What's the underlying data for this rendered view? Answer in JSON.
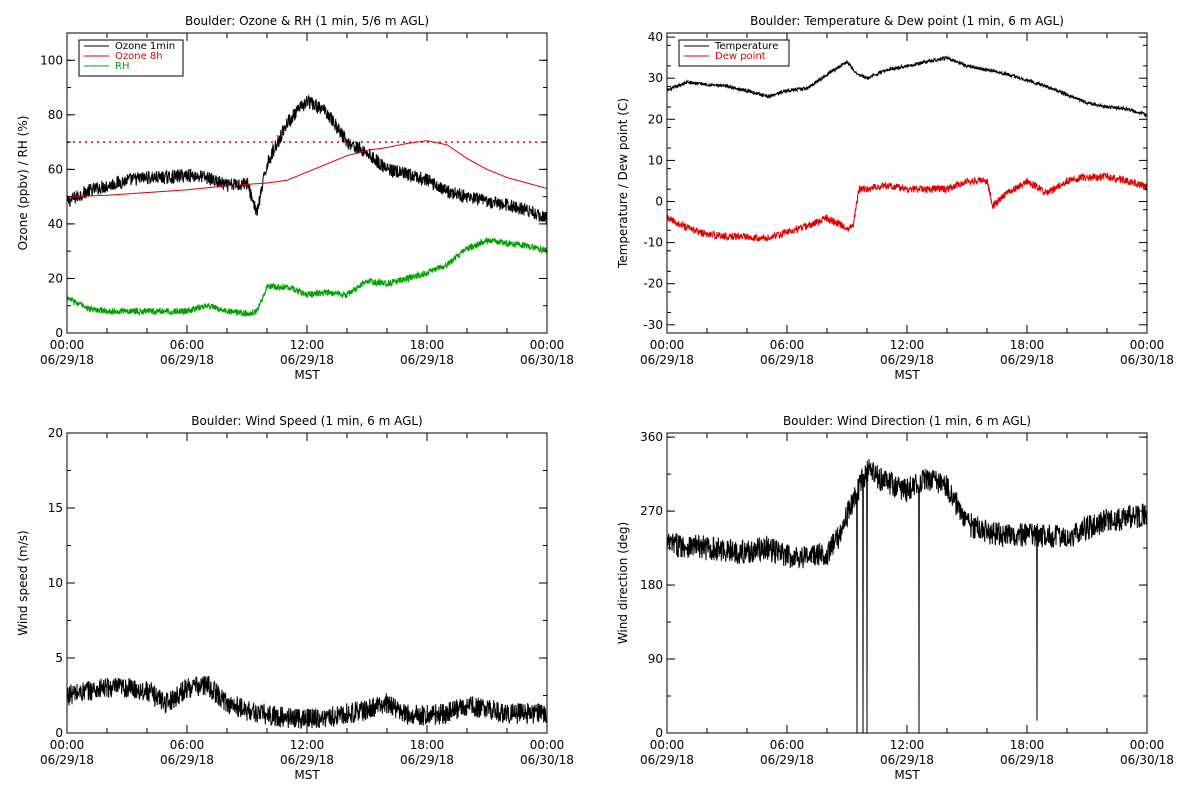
{
  "colors": {
    "black": "#000000",
    "red": "#e00000",
    "green": "#00a000"
  },
  "time_ticks": [
    [
      "00:00",
      "06/29/18"
    ],
    [
      "06:00",
      "06/29/18"
    ],
    [
      "12:00",
      "06/29/18"
    ],
    [
      "18:00",
      "06/29/18"
    ],
    [
      "00:00",
      "06/30/18"
    ]
  ],
  "chart_data": [
    {
      "id": "ozone",
      "type": "line",
      "title": "Boulder: Ozone & RH (1 min, 5/6 m AGL)",
      "xlabel": "MST",
      "ylabel": "Ozone (ppbv) / RH (%)",
      "xlim": [
        0,
        24
      ],
      "ylim": [
        0,
        110
      ],
      "yticks": [
        0,
        20,
        40,
        60,
        80,
        100
      ],
      "legend_position": "top-left",
      "reference_line": {
        "y": 70,
        "style": "dotted",
        "color": "#e00000"
      },
      "series": [
        {
          "name": "Ozone 1min",
          "color": "#000000",
          "x": [
            0,
            1,
            2,
            3,
            4,
            5,
            6,
            7,
            8,
            9,
            9.5,
            10,
            11,
            12,
            13,
            14,
            15,
            16,
            17,
            18,
            19,
            20,
            21,
            22,
            23,
            24
          ],
          "y": [
            48,
            52,
            54,
            56,
            57,
            57,
            58,
            57,
            54,
            55,
            44,
            62,
            77,
            85,
            81,
            70,
            66,
            60,
            58,
            56,
            52,
            50,
            48,
            47,
            45,
            42
          ],
          "noise": 2.5
        },
        {
          "name": "Ozone 8h",
          "color": "#e00000",
          "x": [
            0,
            2,
            4,
            6,
            8,
            10,
            11,
            12,
            13,
            14,
            15,
            16,
            17,
            18,
            19,
            20,
            21,
            22,
            23,
            24
          ],
          "y": [
            50,
            50.5,
            51.5,
            52.5,
            54,
            55,
            56,
            59,
            62,
            65,
            67,
            68,
            69.5,
            70.5,
            69,
            64,
            60,
            57,
            55,
            53
          ],
          "noise": 0
        },
        {
          "name": "RH",
          "color": "#00a000",
          "x": [
            0,
            1,
            2,
            3,
            4,
            5,
            6,
            7,
            8,
            9,
            9.5,
            10,
            11,
            12,
            13,
            14,
            15,
            16,
            17,
            18,
            19,
            20,
            21,
            22,
            23,
            24
          ],
          "y": [
            13,
            9,
            8,
            8,
            8,
            8,
            8,
            10,
            8,
            7,
            8,
            17,
            17,
            14,
            15,
            14,
            19,
            18,
            20,
            22,
            25,
            31,
            34,
            33,
            32,
            30
          ],
          "noise": 1.2
        }
      ]
    },
    {
      "id": "temp",
      "type": "line",
      "title": "Boulder: Temperature & Dew point (1 min, 6 m AGL)",
      "xlabel": "MST",
      "ylabel": "Temperature / Dew point (C)",
      "xlim": [
        0,
        24
      ],
      "ylim": [
        -32,
        41
      ],
      "yticks": [
        -30,
        -20,
        -10,
        0,
        10,
        20,
        30,
        40
      ],
      "legend_position": "top-left",
      "series": [
        {
          "name": "Temperature",
          "color": "#000000",
          "x": [
            0,
            1,
            2,
            3,
            4,
            5,
            6,
            7,
            8,
            9,
            9.5,
            10,
            11,
            12,
            13,
            14,
            15,
            16,
            17,
            18,
            19,
            20,
            21,
            22,
            23,
            24
          ],
          "y": [
            27,
            29,
            28.5,
            28,
            27,
            25.5,
            27,
            27.5,
            31,
            34,
            31,
            30,
            32,
            33,
            34,
            35,
            33,
            32,
            31,
            29.5,
            28,
            26,
            24,
            23,
            22.5,
            21
          ],
          "noise": 0.4
        },
        {
          "name": "Dew point",
          "color": "#e00000",
          "x": [
            0,
            1,
            2,
            3,
            4,
            5,
            6,
            7,
            8,
            9,
            9.3,
            9.6,
            10,
            11,
            12,
            13,
            14,
            15,
            16,
            16.3,
            17,
            18,
            19,
            20,
            21,
            22,
            23,
            24
          ],
          "y": [
            -4,
            -6.5,
            -8,
            -8.5,
            -8.5,
            -9,
            -7.5,
            -6,
            -4,
            -6.5,
            -6,
            3,
            3,
            4,
            3,
            3,
            3,
            5,
            5,
            -1,
            2,
            5,
            2,
            5,
            6,
            6,
            5,
            3.5
          ],
          "noise": 0.9
        }
      ]
    },
    {
      "id": "wind_speed",
      "type": "line",
      "title": "Boulder: Wind Speed (1 min, 6 m AGL)",
      "xlabel": "MST",
      "ylabel": "Wind speed (m/s)",
      "xlim": [
        0,
        24
      ],
      "ylim": [
        0,
        20
      ],
      "yticks": [
        0,
        5,
        10,
        15,
        20
      ],
      "series": [
        {
          "name": "",
          "color": "#000000",
          "x": [
            0,
            1,
            2,
            3,
            4,
            5,
            6,
            7,
            8,
            9,
            10,
            11,
            12,
            13,
            14,
            15,
            16,
            17,
            18,
            19,
            20,
            21,
            22,
            23,
            24
          ],
          "y": [
            2.5,
            2.8,
            3,
            3,
            2.8,
            2,
            3,
            3.2,
            2,
            1.5,
            1.2,
            1,
            1,
            1,
            1.3,
            1.5,
            2,
            1.2,
            1.2,
            1.3,
            1.8,
            1.6,
            1.3,
            1.3,
            1.3
          ],
          "noise": 0.7
        }
      ]
    },
    {
      "id": "wind_dir",
      "type": "line",
      "title": "Boulder: Wind Direction (1 min, 6 m AGL)",
      "xlabel": "MST",
      "ylabel": "Wind direction (deg)",
      "xlim": [
        0,
        24
      ],
      "ylim": [
        0,
        365
      ],
      "yticks": [
        0,
        90,
        180,
        270,
        360
      ],
      "series": [
        {
          "name": "",
          "color": "#000000",
          "x": [
            0,
            1,
            2,
            3,
            4,
            5,
            6,
            7,
            8,
            8.5,
            9,
            10,
            11,
            12,
            13,
            14,
            15,
            16,
            17,
            18,
            19,
            20,
            21,
            22,
            23,
            24
          ],
          "y": [
            230,
            228,
            225,
            222,
            220,
            225,
            215,
            215,
            218,
            235,
            265,
            320,
            305,
            295,
            310,
            300,
            255,
            245,
            240,
            240,
            240,
            238,
            250,
            258,
            262,
            265
          ],
          "noise": 15,
          "spikes": [
            [
              9.5,
              0
            ],
            [
              9.8,
              0
            ],
            [
              10.0,
              0
            ],
            [
              12.6,
              0
            ],
            [
              18.5,
              15
            ]
          ]
        }
      ]
    }
  ]
}
